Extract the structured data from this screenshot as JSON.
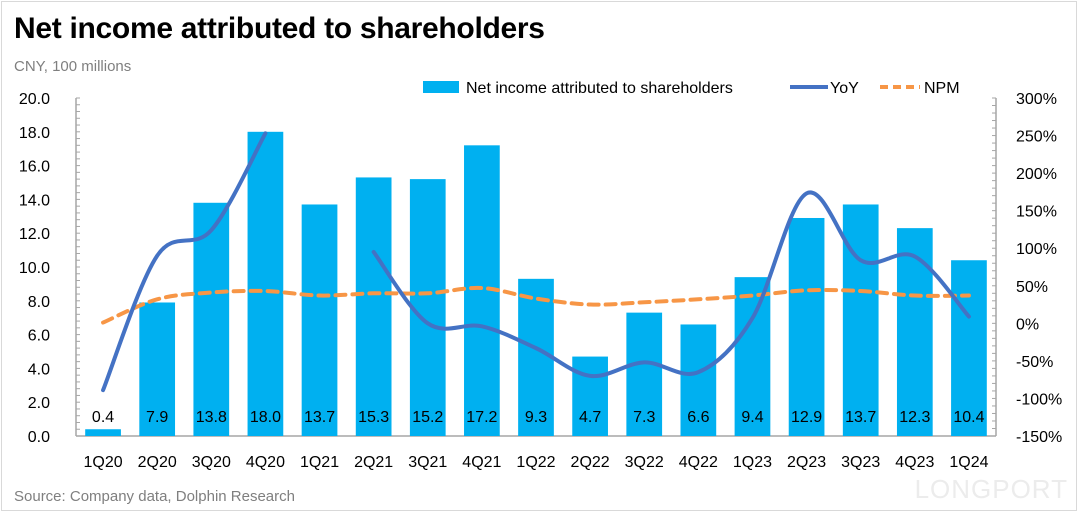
{
  "chart_data": {
    "type": "bar",
    "title": "Net income attributed to shareholders",
    "subtitle": "CNY, 100 millions",
    "source": "Source: Company data,  Dolphin Research",
    "watermark": "LONGPORT",
    "categories": [
      "1Q20",
      "2Q20",
      "3Q20",
      "4Q20",
      "1Q21",
      "2Q21",
      "3Q21",
      "4Q21",
      "1Q22",
      "2Q22",
      "3Q22",
      "4Q22",
      "1Q23",
      "2Q23",
      "3Q23",
      "4Q23",
      "1Q24"
    ],
    "series": [
      {
        "name": "Net income attributed to shareholders",
        "type": "bar",
        "axis": "left",
        "color": "#00b0f0",
        "values": [
          0.4,
          7.9,
          13.8,
          18.0,
          13.7,
          15.3,
          15.2,
          17.2,
          9.3,
          4.7,
          7.3,
          6.6,
          9.4,
          12.9,
          13.7,
          12.3,
          10.4
        ],
        "labels": [
          "0.4",
          "7.9",
          "13.8",
          "18.0",
          "13.7",
          "15.3",
          "15.2",
          "17.2",
          "9.3",
          "4.7",
          "7.3",
          "6.6",
          "9.4",
          "12.9",
          "13.7",
          "12.3",
          "10.4"
        ]
      },
      {
        "name": "YoY",
        "type": "line",
        "axis": "right",
        "unit": "%",
        "color": "#4472c4",
        "values": [
          -89,
          90,
          124,
          253,
          null,
          95,
          0,
          -4,
          -33,
          -70,
          -52,
          -65,
          7,
          173,
          84,
          89,
          9
        ]
      },
      {
        "name": "NPM",
        "type": "line",
        "style": "dashed",
        "axis": "right",
        "unit": "%",
        "color": "#f79646",
        "values": [
          1,
          32,
          41,
          43,
          37,
          40,
          40,
          47,
          33,
          25,
          28,
          32,
          37,
          44,
          43,
          37,
          37
        ]
      }
    ],
    "left_axis": {
      "ylim": [
        0,
        20
      ],
      "ticks": [
        "0.0",
        "2.0",
        "4.0",
        "6.0",
        "8.0",
        "10.0",
        "12.0",
        "14.0",
        "16.0",
        "18.0",
        "20.0"
      ]
    },
    "right_axis": {
      "ylim": [
        -150,
        300
      ],
      "ticks": [
        "-150%",
        "-100%",
        "-50%",
        "0%",
        "50%",
        "100%",
        "150%",
        "200%",
        "250%",
        "300%"
      ]
    },
    "legend": {
      "position": "top-right",
      "items": [
        "Net income attributed to shareholders",
        "YoY",
        "NPM"
      ]
    },
    "grid": false
  }
}
